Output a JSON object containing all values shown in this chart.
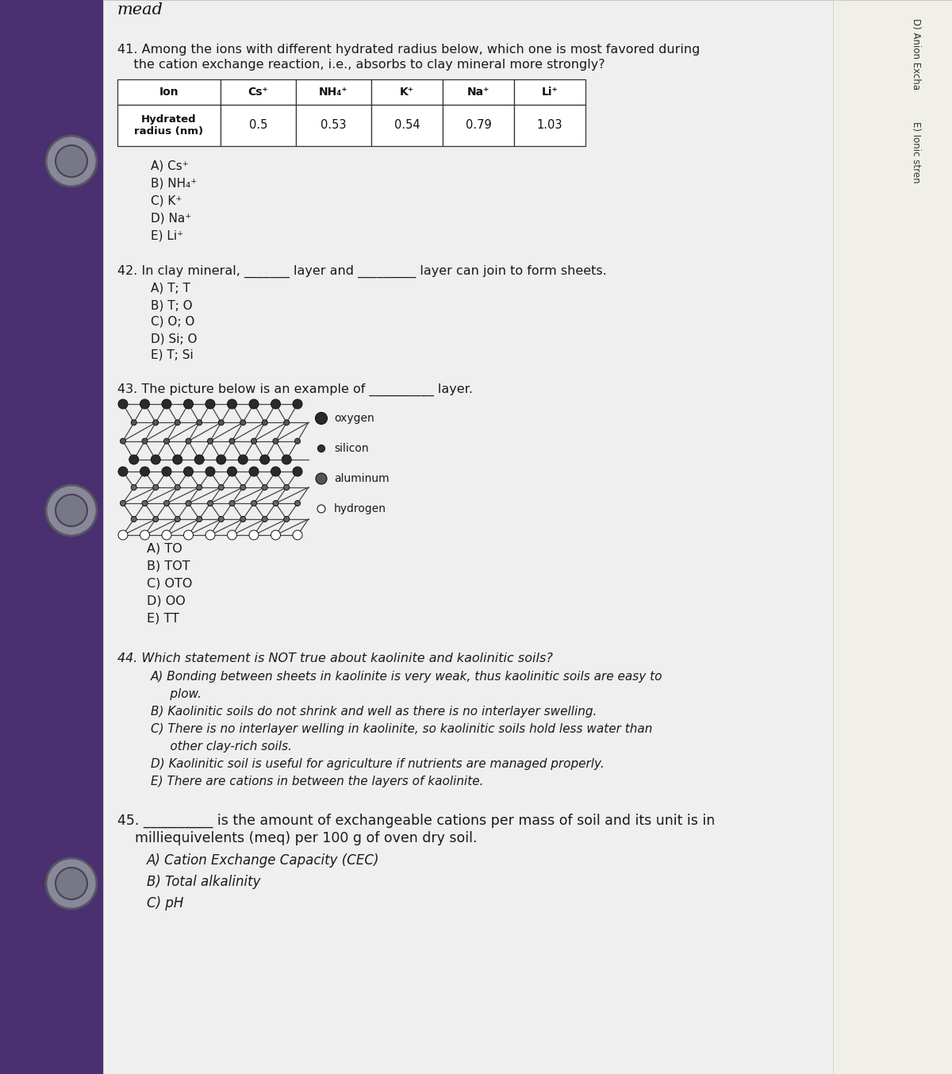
{
  "bg_color": "#8a7a9a",
  "paper_color": "#f2f2f2",
  "purple_color": "#4a3070",
  "mead_text": "mead",
  "q41_line1": "41. Among the ions with different hydrated radius below, which one is most favored during",
  "q41_line2": "    the cation exchange reaction, i.e., absorbs to clay mineral more strongly?",
  "table_headers": [
    "Ion",
    "Cs⁺",
    "NH₄⁺",
    "K⁺",
    "Na⁺",
    "Li⁺"
  ],
  "table_row_label": "Hydrated\nradius (nm)",
  "table_values": [
    "0.5",
    "0.53",
    "0.54",
    "0.79",
    "1.03"
  ],
  "q41_options": [
    "A) Cs⁺",
    "B) NH₄⁺",
    "C) K⁺",
    "D) Na⁺",
    "E) Li⁺"
  ],
  "q42_line": "42. In clay mineral, _______ layer and _________ layer can join to form sheets.",
  "q42_options": [
    "A) T; T",
    "B) T; O",
    "C) O; O",
    "D) Si; O",
    "E) T; Si"
  ],
  "q43_line": "43. The picture below is an example of __________ layer.",
  "q43_options": [
    "A) TO",
    "B) TOT",
    "C) OTO",
    "D) OO",
    "E) TT"
  ],
  "legend_items": [
    "oxygen",
    "silicon",
    "aluminum",
    "hydrogen"
  ],
  "q44_line0": "44. Which statement is NOT true about kaolinite and kaolinitic soils?",
  "q44_options": [
    "A) Bonding between sheets in kaolinite is very weak, thus kaolinitic soils are easy to",
    "     plow.",
    "B) Kaolinitic soils do not shrink and well as there is no interlayer swelling.",
    "C) There is no interlayer welling in kaolinite, so kaolinitic soils hold less water than",
    "     other clay-rich soils.",
    "D) Kaolinitic soil is useful for agriculture if nutrients are managed properly.",
    "E) There are cations in between the layers of kaolinite."
  ],
  "q45_line": "45. __________ is the amount of exchangeable cations per mass of soil and its unit is in",
  "q45_line2": "    milliequivelents (meq) per 100 g of oven dry soil.",
  "q45_options": [
    "A) Cation Exchange Capacity (CEC)",
    "B) Total alkalinity",
    "C) pH"
  ],
  "right_text1": "D) Anion Excha",
  "right_text2": "E) Ionic stren",
  "node_dark": "#2a2a2a",
  "node_mid": "#555555",
  "line_color": "#444444"
}
